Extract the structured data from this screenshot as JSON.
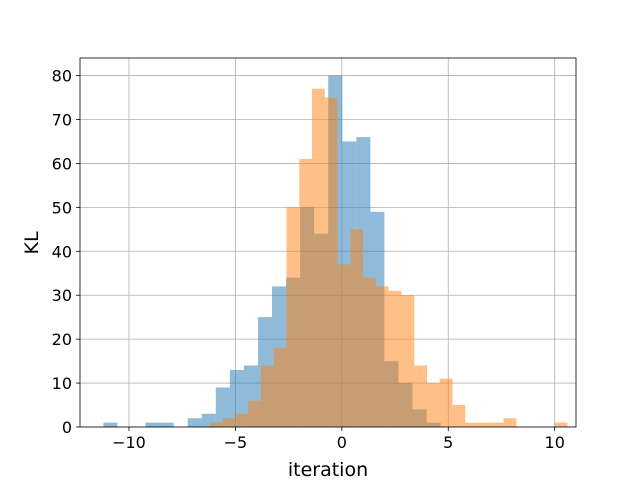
{
  "chart_data": {
    "type": "histogram",
    "xlabel": "iteration",
    "ylabel": "KL",
    "xlim": [
      -12.3,
      11.0
    ],
    "ylim": [
      0,
      84
    ],
    "grid": true,
    "xticks": [
      -10,
      -5,
      0,
      5,
      10
    ],
    "yticks": [
      0,
      10,
      20,
      30,
      40,
      50,
      60,
      70,
      80
    ],
    "series": [
      {
        "color": "#1f77b4",
        "opacity": 0.5,
        "bin_start": -11.2,
        "bin_width": 0.66,
        "counts": [
          1,
          0,
          0,
          1,
          1,
          0,
          2,
          3,
          9,
          13,
          14,
          25,
          32,
          34,
          50,
          44,
          80,
          65,
          66,
          49,
          15,
          10,
          4,
          1
        ]
      },
      {
        "color": "#ff7f0e",
        "opacity": 0.5,
        "bin_start": -6.2,
        "bin_width": 0.6,
        "counts": [
          1,
          2,
          3,
          6,
          14,
          18,
          50,
          61,
          77,
          75,
          37,
          45,
          34,
          32,
          31,
          30,
          14,
          10,
          11,
          5,
          1,
          1,
          1,
          2,
          0,
          0,
          0,
          1
        ]
      }
    ]
  }
}
